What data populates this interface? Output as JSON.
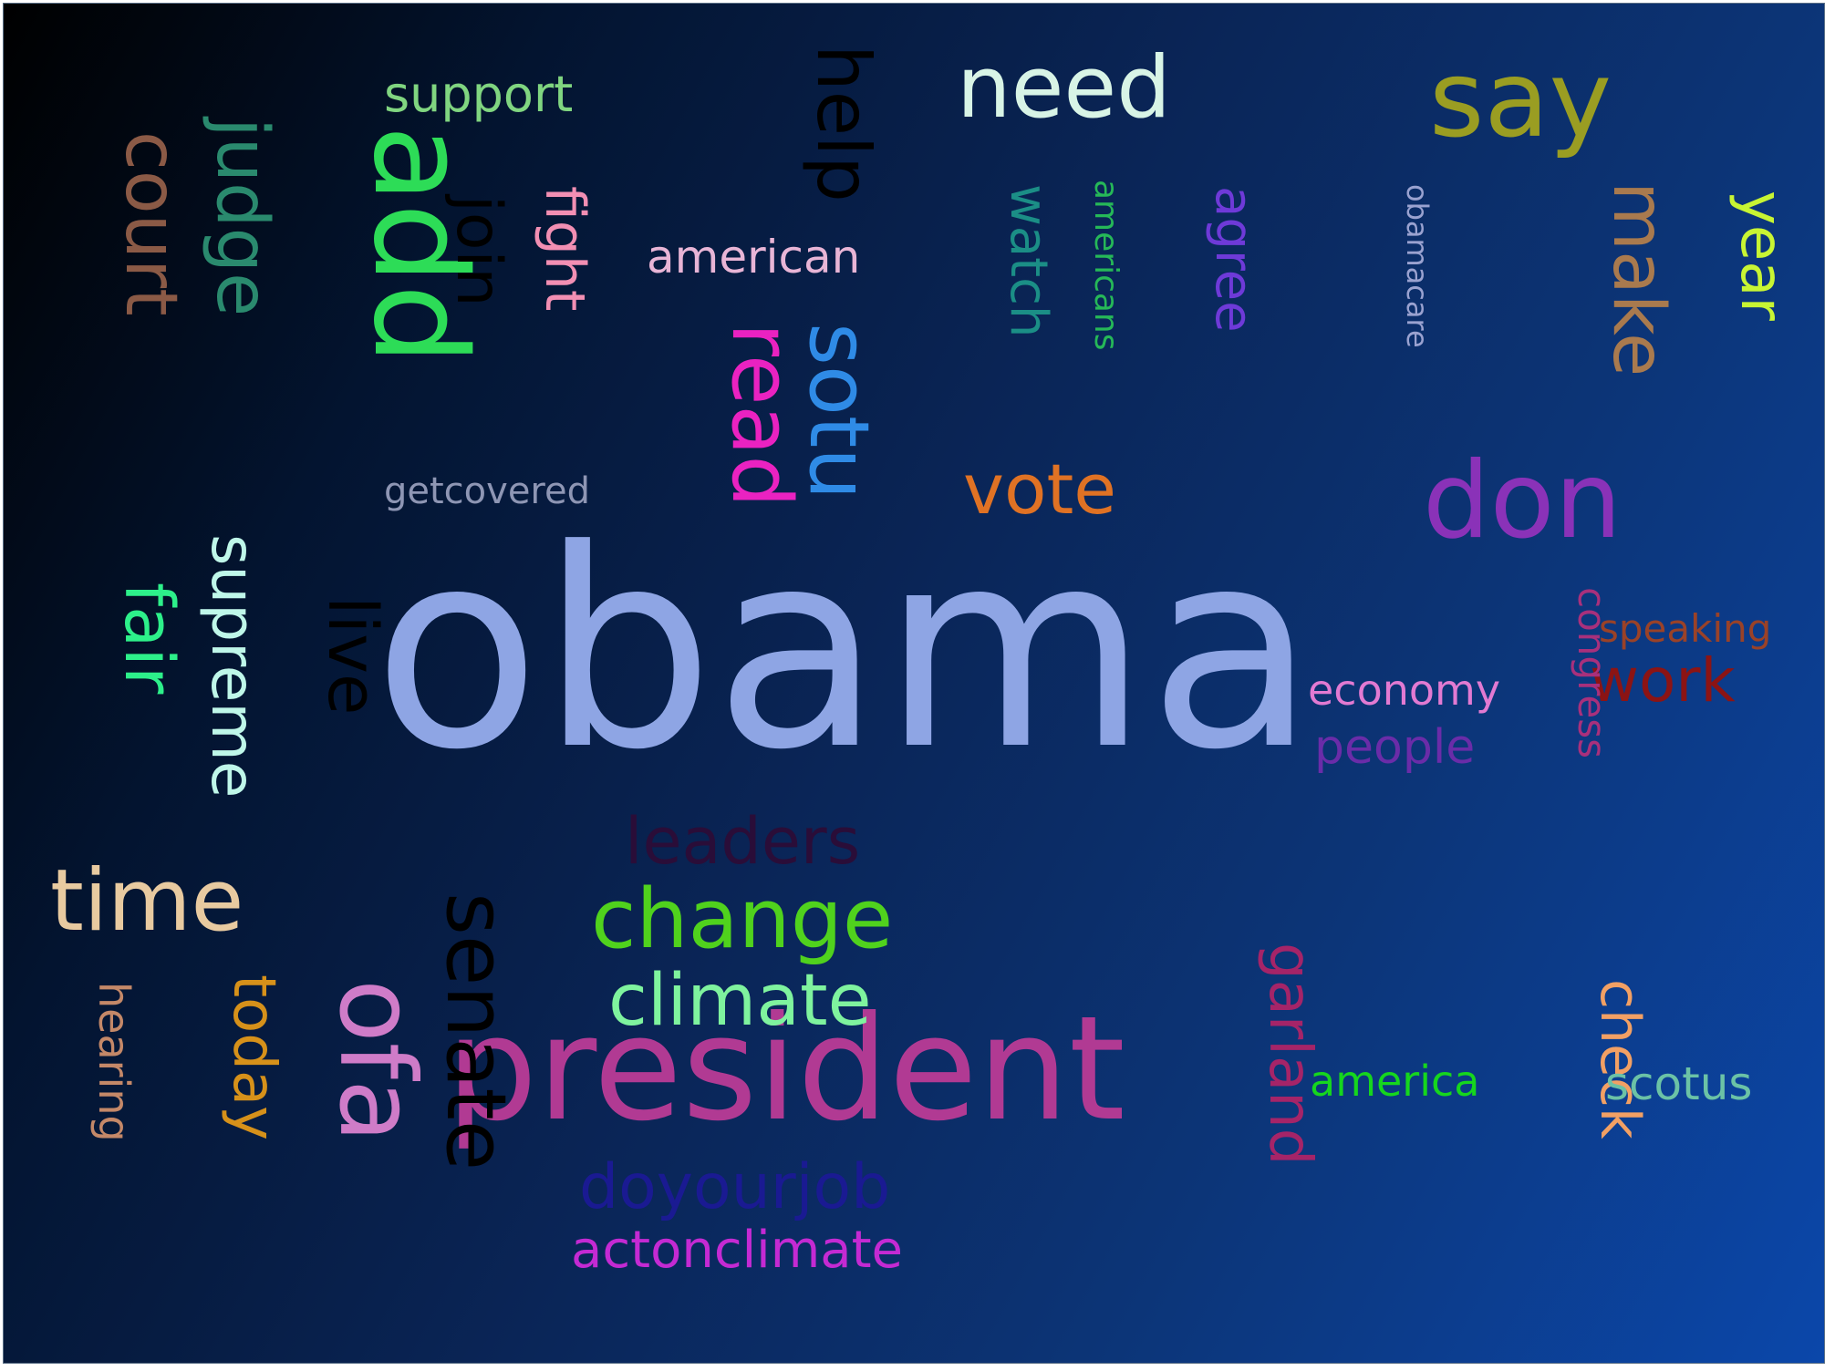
{
  "cloud": {
    "words": [
      {
        "text": "obama",
        "color": "#8ea5e4",
        "rotated": false
      },
      {
        "text": "president",
        "color": "#b13a93",
        "rotated": false
      },
      {
        "text": "add",
        "color": "#2ddc57",
        "rotated": true
      },
      {
        "text": "say",
        "color": "#9a9d22",
        "rotated": false
      },
      {
        "text": "don",
        "color": "#8a32b8",
        "rotated": false
      },
      {
        "text": "ofa",
        "color": "#cf7cc8",
        "rotated": true
      },
      {
        "text": "senate",
        "color": "#000000",
        "rotated": true
      },
      {
        "text": "need",
        "color": "#d8f4e6",
        "rotated": false
      },
      {
        "text": "time",
        "color": "#e8caa0",
        "rotated": false
      },
      {
        "text": "change",
        "color": "#50d21d",
        "rotated": false
      },
      {
        "text": "sotu",
        "color": "#2f8be6",
        "rotated": true
      },
      {
        "text": "read",
        "color": "#ea22c1",
        "rotated": true
      },
      {
        "text": "help",
        "color": "#000000",
        "rotated": true
      },
      {
        "text": "judge",
        "color": "#2a8a6e",
        "rotated": true
      },
      {
        "text": "court",
        "color": "#8b5a46",
        "rotated": true
      },
      {
        "text": "make",
        "color": "#a97a4e",
        "rotated": true
      },
      {
        "text": "climate",
        "color": "#7ff39e",
        "rotated": false
      },
      {
        "text": "vote",
        "color": "#e07224",
        "rotated": false
      },
      {
        "text": "live",
        "color": "#000000",
        "rotated": true
      },
      {
        "text": "fair",
        "color": "#2df08a",
        "rotated": true
      },
      {
        "text": "supreme",
        "color": "#bff7e9",
        "rotated": true
      },
      {
        "text": "today",
        "color": "#d6911a",
        "rotated": true
      },
      {
        "text": "year",
        "color": "#c8f533",
        "rotated": true
      },
      {
        "text": "join",
        "color": "#000000",
        "rotated": true
      },
      {
        "text": "fight",
        "color": "#f28fb3",
        "rotated": true
      },
      {
        "text": "leaders",
        "color": "#2a0d38",
        "rotated": false
      },
      {
        "text": "doyourjob",
        "color": "#1a1a92",
        "rotated": false
      },
      {
        "text": "garland",
        "color": "#a52468",
        "rotated": true
      },
      {
        "text": "work",
        "color": "#8c1414",
        "rotated": false
      },
      {
        "text": "check",
        "color": "#f2a064",
        "rotated": true
      },
      {
        "text": "watch",
        "color": "#1b8e86",
        "rotated": true
      },
      {
        "text": "agree",
        "color": "#6e3ad8",
        "rotated": true
      },
      {
        "text": "actonclimate",
        "color": "#c42ad3",
        "rotated": false
      },
      {
        "text": "support",
        "color": "#80d580",
        "rotated": false
      },
      {
        "text": "american",
        "color": "#e8b5d6",
        "rotated": false
      },
      {
        "text": "people",
        "color": "#6a2ca8",
        "rotated": false
      },
      {
        "text": "scotus",
        "color": "#6bc2a6",
        "rotated": false
      },
      {
        "text": "economy",
        "color": "#e27ad2",
        "rotated": false
      },
      {
        "text": "america",
        "color": "#16d61e",
        "rotated": false
      },
      {
        "text": "hearing",
        "color": "#c48868",
        "rotated": true
      },
      {
        "text": "congress",
        "color": "#a8307c",
        "rotated": true
      },
      {
        "text": "speaking",
        "color": "#9a4228",
        "rotated": false
      },
      {
        "text": "getcovered",
        "color": "#8e96b4",
        "rotated": false
      },
      {
        "text": "americans",
        "color": "#26b858",
        "rotated": true
      },
      {
        "text": "obamacare",
        "color": "#9aa2d0",
        "rotated": true
      }
    ]
  }
}
